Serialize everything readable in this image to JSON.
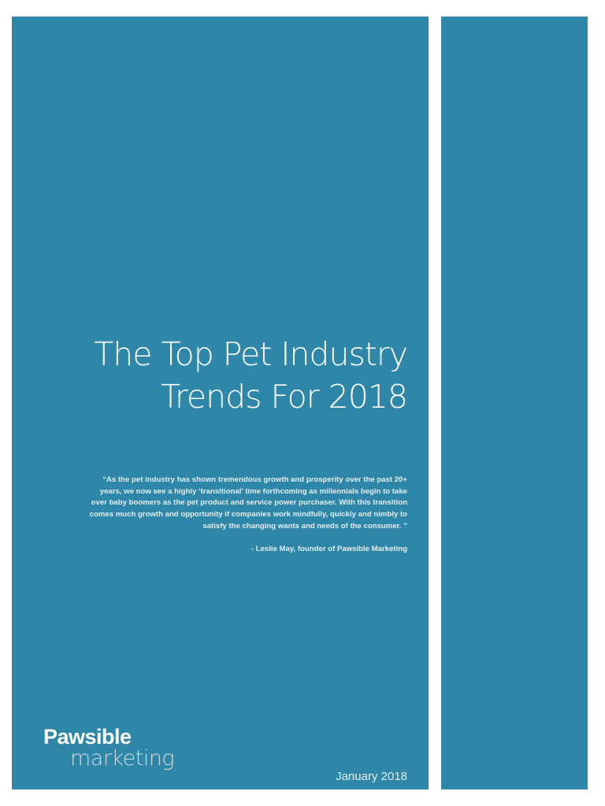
{
  "cover": {
    "title_lines": [
      "The Top Pet Industry",
      "Trends For 2018"
    ],
    "quote_lines": [
      "“As the pet industry has shown tremendous growth and prosperity over the past 20+",
      "years, we now see a highly ‘transitional’ time forthcoming as millennials begin to take",
      "over baby boomers as the pet product and service power purchaser. With this transition",
      "comes much growth and opportunity if companies work mindfully, quickly and nimbly to",
      "satisfy the changing wants and needs of the consumer. ”"
    ],
    "attribution": "-  Leslie May, founder of Pawsible Marketing",
    "date": "January 2018",
    "logo": {
      "line1": "Pawsible",
      "line2": "marketing"
    },
    "colors": {
      "panel": "#2e87a8",
      "background": "#ffffff"
    }
  }
}
